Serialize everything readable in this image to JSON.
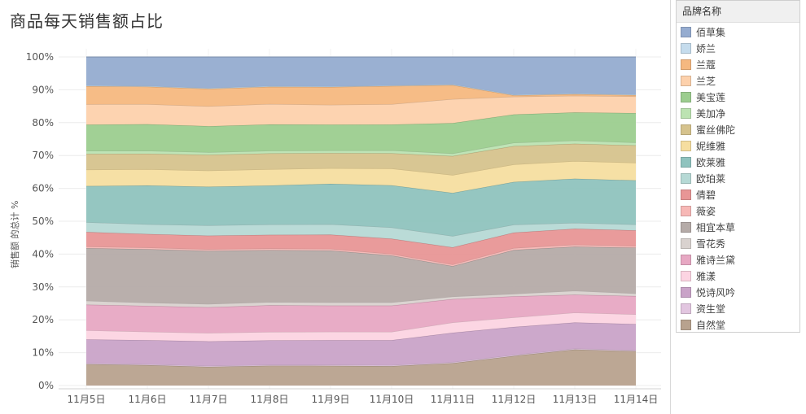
{
  "chart_data": {
    "type": "area",
    "stacked": "percent",
    "title": "商品每天销售额占比",
    "ylabel": "销售额 的总计 %",
    "xlabel": "",
    "categories": [
      "11月5日",
      "11月6日",
      "11月7日",
      "11月8日",
      "11月9日",
      "11月10日",
      "11月11日",
      "11月12日",
      "11月13日",
      "11月14日"
    ],
    "y_ticks": [
      "0%",
      "10%",
      "20%",
      "30%",
      "40%",
      "50%",
      "60%",
      "70%",
      "80%",
      "90%",
      "100%"
    ],
    "ylim": [
      0,
      100
    ],
    "grid": true,
    "legend_position": "right",
    "legend_title": "品牌名称",
    "series": [
      {
        "name": "自然堂",
        "color": "#b8a28e",
        "values": [
          6.5,
          6.3,
          5.8,
          6.1,
          6.1,
          6.0,
          7.0,
          9.0,
          11.0,
          10.5
        ]
      },
      {
        "name": "资生堂",
        "color": "#e2c6e0",
        "values": [
          0.3,
          0.3,
          0.3,
          0.3,
          0.3,
          0.3,
          0.3,
          0.3,
          0.3,
          0.3
        ]
      },
      {
        "name": "悦诗风吟",
        "color": "#c9a3c8",
        "values": [
          7.2,
          7.4,
          7.6,
          7.5,
          7.6,
          7.7,
          9.2,
          8.5,
          8.0,
          8.0
        ]
      },
      {
        "name": "雅漾",
        "color": "#fcd4e2",
        "values": [
          2.8,
          2.6,
          2.6,
          2.6,
          2.6,
          2.6,
          3.2,
          2.9,
          3.0,
          3.0
        ]
      },
      {
        "name": "雅诗兰黛",
        "color": "#e7a8c3",
        "values": [
          7.8,
          8.0,
          8.0,
          8.2,
          8.1,
          8.1,
          7.3,
          6.4,
          5.5,
          5.6
        ]
      },
      {
        "name": "雪花秀",
        "color": "#d9d2cf",
        "values": [
          1.2,
          1.0,
          1.0,
          1.0,
          1.0,
          1.0,
          0.8,
          0.8,
          1.2,
          0.8
        ]
      },
      {
        "name": "相宜本草",
        "color": "#b5aba8",
        "values": [
          16.0,
          16.5,
          16.5,
          16.0,
          16.0,
          14.5,
          9.5,
          13.3,
          13.5,
          14.0
        ]
      },
      {
        "name": "薇姿",
        "color": "#f7b8b6",
        "values": [
          0.5,
          0.5,
          0.5,
          0.5,
          0.5,
          0.5,
          0.5,
          0.6,
          0.6,
          0.5
        ]
      },
      {
        "name": "倩碧",
        "color": "#e89696",
        "values": [
          4.4,
          4.2,
          4.2,
          4.2,
          4.4,
          4.7,
          5.4,
          4.7,
          4.9,
          4.8
        ]
      },
      {
        "name": "欧珀莱",
        "color": "#b6d9d5",
        "values": [
          3.0,
          3.0,
          3.2,
          3.2,
          3.2,
          3.5,
          3.5,
          2.4,
          1.8,
          1.8
        ]
      },
      {
        "name": "欧莱雅",
        "color": "#8fc3be",
        "values": [
          11.0,
          12.0,
          12.0,
          12.0,
          12.5,
          13.0,
          13.5,
          13.0,
          13.5,
          13.5
        ]
      },
      {
        "name": "妮维雅",
        "color": "#f6dea0",
        "values": [
          5.0,
          5.0,
          5.0,
          5.0,
          4.8,
          5.2,
          5.6,
          5.3,
          5.4,
          5.4
        ]
      },
      {
        "name": "蜜丝佛陀",
        "color": "#d6c38d",
        "values": [
          4.8,
          4.8,
          4.9,
          4.9,
          4.7,
          4.7,
          5.9,
          5.6,
          5.3,
          5.3
        ]
      },
      {
        "name": "美加净",
        "color": "#bce3b2",
        "values": [
          0.9,
          0.9,
          0.8,
          0.8,
          0.8,
          0.9,
          0.8,
          1.0,
          1.0,
          0.9
        ]
      },
      {
        "name": "美宝莲",
        "color": "#9ccd8f",
        "values": [
          8.0,
          8.2,
          8.1,
          8.1,
          8.0,
          8.0,
          9.5,
          8.6,
          8.6,
          9.0
        ]
      },
      {
        "name": "兰芝",
        "color": "#fdd1ac",
        "values": [
          6.2,
          6.2,
          6.2,
          6.3,
          6.1,
          6.3,
          7.5,
          5.4,
          5.1,
          5.1
        ]
      },
      {
        "name": "兰蔻",
        "color": "#f5b880",
        "values": [
          5.5,
          5.4,
          5.4,
          5.3,
          5.5,
          5.6,
          4.4,
          0.4,
          0.5,
          0.4
        ]
      },
      {
        "name": "娇兰",
        "color": "#c5dced",
        "values": [
          0.2,
          0.2,
          0.2,
          0.2,
          0.2,
          0.2,
          0.2,
          0.2,
          0.2,
          0.2
        ]
      },
      {
        "name": "佰草集",
        "color": "#95acd0",
        "values": [
          8.7,
          9.0,
          9.7,
          9.0,
          9.1,
          8.8,
          8.6,
          11.5,
          11.2,
          11.5
        ]
      }
    ]
  }
}
